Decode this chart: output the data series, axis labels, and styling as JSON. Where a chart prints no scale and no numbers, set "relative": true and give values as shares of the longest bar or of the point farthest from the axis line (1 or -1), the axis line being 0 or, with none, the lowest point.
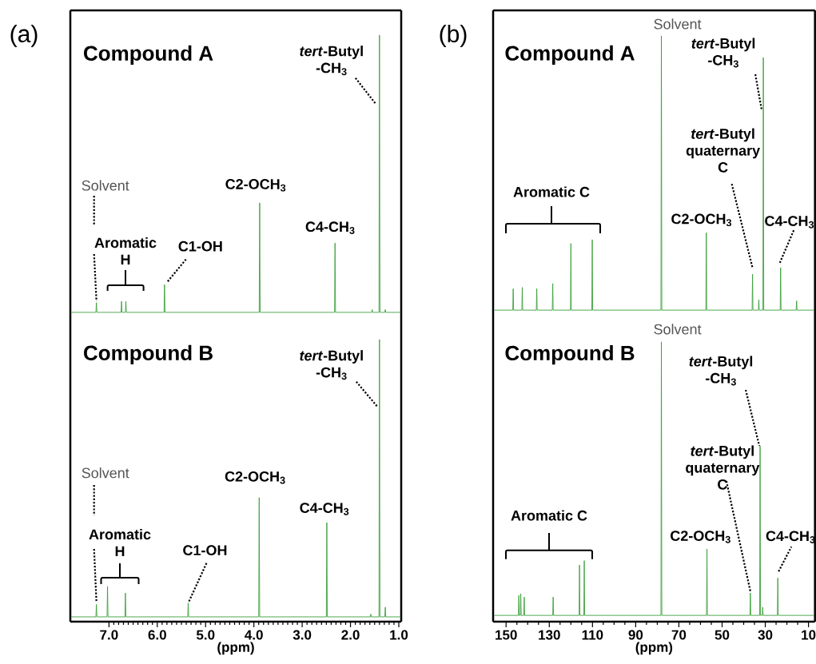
{
  "chart_data": [
    {
      "type": "line",
      "title": "Compound A",
      "relative": true,
      "color": "#3c9f3c",
      "xlim": [
        7.8,
        0.95
      ],
      "tick_labels": false,
      "x": [
        7.79,
        7.27,
        7.26,
        7.25,
        6.75,
        6.74,
        6.73,
        6.66,
        6.65,
        6.64,
        5.86,
        5.85,
        5.84,
        3.89,
        3.88,
        3.87,
        2.33,
        2.32,
        2.31,
        1.56,
        1.55,
        1.54,
        1.41,
        1.4,
        1.39,
        1.29,
        1.28,
        1.27,
        0.96
      ],
      "values": [
        0,
        0,
        0.035,
        0,
        0,
        0.04,
        0,
        0,
        0.04,
        0,
        0,
        0.1,
        0,
        0,
        0.395,
        0,
        0,
        0.25,
        0,
        0,
        0.01,
        0,
        0,
        1,
        0,
        0,
        0.01,
        0,
        0
      ],
      "annotations": [
        "(a)",
        "Solvent",
        "Aromatic H",
        {
          "text": "C1-OH",
          "x": 5.85,
          "y": 0.1
        },
        {
          "text": "C2-OCH$_{3}$",
          "x": 3.88,
          "y": 0.395
        },
        {
          "text": "C4-CH$_{3}$",
          "x": 2.32,
          "y": 0.25
        },
        {
          "text": "*tert*-Butyl -CH$_{3}$",
          "x": 1.4,
          "y": 0.75
        }
      ]
    },
    {
      "type": "line",
      "title": "Compound B",
      "xlabel": "(ppm)",
      "relative": true,
      "color": "#3c9f3c",
      "xlim": [
        7.8,
        0.95
      ],
      "tick_labels": "x",
      "xticks": [
        {
          "value": 7,
          "label": "7.0"
        },
        {
          "value": 6,
          "label": "6.0"
        },
        {
          "value": 5,
          "label": "5.0"
        },
        {
          "value": 4,
          "label": "4.0"
        },
        {
          "value": 3,
          "label": "3.0"
        },
        {
          "value": 2,
          "label": "2.0"
        },
        {
          "value": 1,
          "label": "1.0"
        }
      ],
      "x": [
        7.79,
        7.27,
        7.26,
        7.25,
        7.04,
        7.03,
        7.02,
        6.67,
        6.66,
        6.65,
        5.37,
        5.36,
        5.35,
        3.9,
        3.89,
        3.88,
        2.5,
        2.49,
        2.48,
        1.59,
        1.58,
        1.57,
        1.41,
        1.4,
        1.39,
        1.29,
        1.28,
        1.27,
        0.96
      ],
      "values": [
        0,
        0,
        0.045,
        0,
        0,
        0.11,
        0,
        0,
        0.086,
        0,
        0,
        0.05,
        0,
        0,
        0.43,
        0,
        0,
        0.34,
        0,
        0,
        0.01,
        0,
        0,
        1,
        0,
        0,
        0.035,
        0,
        0
      ],
      "annotations": [
        "Solvent",
        "Aromatic H",
        {
          "text": "C1-OH",
          "x": 5.36,
          "y": 0.05
        },
        {
          "text": "C2-OCH$_{3}$",
          "x": 3.89,
          "y": 0.43
        },
        {
          "text": "C4-CH$_{3}$",
          "x": 2.49,
          "y": 0.34
        },
        {
          "text": "*tert*-Butyl -CH$_{3}$",
          "x": 1.4,
          "y": 0.75
        }
      ]
    },
    {
      "type": "line",
      "title": "Compound A",
      "relative": true,
      "color": "#3c9f3c",
      "xlim": [
        156,
        7
      ],
      "tick_labels": false,
      "x": [
        155.5,
        146.9,
        146.7,
        146.5,
        142.7,
        142.5,
        142.3,
        136.0,
        135.8,
        135.6,
        128.6,
        128.4,
        128.2,
        120.2,
        120.0,
        119.8,
        110.3,
        110.1,
        109.9,
        78.3,
        78.1,
        77.9,
        57.5,
        57.3,
        57.1,
        36.1,
        35.9,
        35.7,
        33.2,
        33.0,
        32.8,
        31.1,
        30.9,
        30.7,
        23.1,
        22.9,
        22.7,
        15.7,
        15.5,
        15.3,
        7.5
      ],
      "values": [
        0,
        0,
        0.078,
        0,
        0,
        0.083,
        0,
        0,
        0.078,
        0,
        0,
        0.097,
        0,
        0,
        0.243,
        0,
        0,
        0.257,
        0,
        0,
        1,
        0,
        0,
        0.282,
        0,
        0,
        0.131,
        0,
        0,
        0.038,
        0,
        0,
        0.921,
        0,
        0,
        0.155,
        0,
        0,
        0.034,
        0,
        0
      ],
      "annotations": [
        "(b)",
        {
          "text": "Solvent",
          "x": 78.1,
          "y": 1
        },
        "Aromatic C",
        {
          "text": "C2-OCH$_{3}$",
          "x": 57.3,
          "y": 0.282
        },
        {
          "text": "*tert*-Butyl quaternary C",
          "x": 35.9,
          "y": 0.131
        },
        {
          "text": "*tert*-Butyl -CH$_{3}$",
          "x": 30.9,
          "y": 0.723
        },
        {
          "text": "C4-CH$_{3}$",
          "x": 22.9,
          "y": 0.155
        }
      ]
    },
    {
      "type": "line",
      "title": "Compound B",
      "xlabel": "(ppm)",
      "relative": true,
      "color": "#3c9f3c",
      "xlim": [
        156,
        7
      ],
      "tick_labels": "x",
      "xticks": [
        150,
        130,
        110,
        90,
        70,
        50,
        30,
        10
      ],
      "x": [
        155.5,
        144.3,
        144.1,
        143.9,
        143.4,
        143.2,
        143.0,
        141.8,
        141.6,
        141.4,
        128.4,
        128.2,
        128.0,
        116.2,
        116.0,
        115.8,
        114.0,
        113.8,
        113.6,
        78.3,
        78.1,
        77.9,
        57.2,
        57.0,
        56.8,
        37.1,
        36.9,
        36.7,
        32.6,
        32.4,
        32.2,
        31.4,
        31.2,
        31.0,
        24.4,
        24.2,
        24.0,
        7.5
      ],
      "values": [
        0,
        0,
        0.073,
        0,
        0,
        0.079,
        0,
        0,
        0.067,
        0,
        0,
        0.067,
        0,
        0,
        0.184,
        0,
        0,
        0.2,
        0,
        0,
        1,
        0,
        0,
        0.243,
        0,
        0,
        0.082,
        0,
        0,
        0.62,
        0,
        0,
        0.03,
        0,
        0,
        0.137,
        0,
        0
      ],
      "annotations": [
        {
          "text": "Solvent",
          "x": 78.1,
          "y": 1
        },
        "Aromatic C",
        {
          "text": "C2-OCH$_{3}$",
          "x": 57.0,
          "y": 0.243
        },
        {
          "text": "*tert*-Butyl quaternary C",
          "x": 36.9,
          "y": 0.082
        },
        {
          "text": "*tert*-Butyl -CH$_{3}$",
          "x": 32.4,
          "y": 0.62
        },
        {
          "text": "C4-CH$_{3}$",
          "x": 24.2,
          "y": 0.137
        }
      ]
    }
  ]
}
